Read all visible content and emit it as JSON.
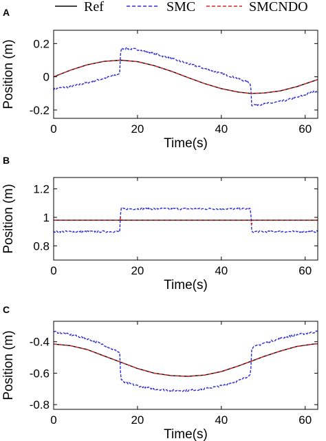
{
  "legend": [
    {
      "name": "Ref",
      "color": "#000000",
      "dash": "solid"
    },
    {
      "name": "SMC",
      "color": "#2a2ad6",
      "dash": "dashed"
    },
    {
      "name": "SMCNDO",
      "color": "#d62424",
      "dash": "dashed"
    }
  ],
  "chart_data": [
    {
      "type": "line",
      "panel_label": "A",
      "xlabel": "Time(s)",
      "ylabel": "Position (m)",
      "xlim": [
        0,
        63
      ],
      "ylim": [
        -0.25,
        0.28
      ],
      "xticks": [
        0,
        20,
        40,
        60
      ],
      "yticks": [
        -0.2,
        0,
        0.2
      ],
      "ytick_labels": [
        "-0.2",
        "0",
        "0.2"
      ],
      "grid": false,
      "legend_position": "top",
      "series": [
        {
          "name": "Ref",
          "x": [
            0,
            4,
            8,
            12,
            16,
            20,
            24,
            28,
            32,
            36,
            40,
            44,
            47,
            50,
            54,
            58,
            62,
            63
          ],
          "y": [
            0,
            0.04,
            0.072,
            0.093,
            0.1,
            0.091,
            0.067,
            0.034,
            -0.004,
            -0.041,
            -0.071,
            -0.092,
            -0.1,
            -0.098,
            -0.085,
            -0.059,
            -0.025,
            -0.016
          ]
        },
        {
          "name": "SMC",
          "x": [
            0,
            2,
            4,
            8,
            12,
            15.8,
            16,
            17,
            20,
            24,
            28,
            32,
            36,
            40,
            44,
            47,
            47.2,
            50,
            54,
            58,
            62,
            63
          ],
          "y": [
            -0.075,
            -0.065,
            -0.06,
            -0.035,
            -0.01,
            0.02,
            0.17,
            0.17,
            0.165,
            0.14,
            0.11,
            0.08,
            0.05,
            0.02,
            -0.01,
            -0.04,
            -0.17,
            -0.165,
            -0.15,
            -0.125,
            -0.09,
            -0.085
          ]
        },
        {
          "name": "SMCNDO",
          "x": [
            0,
            4,
            8,
            12,
            16,
            20,
            24,
            28,
            32,
            36,
            40,
            44,
            47,
            50,
            54,
            58,
            62,
            63
          ],
          "y": [
            0,
            0.04,
            0.072,
            0.093,
            0.1,
            0.091,
            0.067,
            0.034,
            -0.004,
            -0.041,
            -0.071,
            -0.092,
            -0.1,
            -0.098,
            -0.085,
            -0.059,
            -0.025,
            -0.016
          ]
        }
      ]
    },
    {
      "type": "line",
      "panel_label": "B",
      "xlabel": "Time(s)",
      "ylabel": "Position (m)",
      "xlim": [
        0,
        63
      ],
      "ylim": [
        0.7,
        1.28
      ],
      "xticks": [
        0,
        20,
        40,
        60
      ],
      "yticks": [
        0.8,
        1,
        1.2
      ],
      "ytick_labels": [
        "0.8",
        "1",
        "1.2"
      ],
      "grid": false,
      "series": [
        {
          "name": "Ref",
          "x": [
            0,
            63
          ],
          "y": [
            0.98,
            0.98
          ]
        },
        {
          "name": "SMC",
          "x": [
            0,
            10,
            15.8,
            16,
            20,
            30,
            40,
            47,
            47.2,
            55,
            63
          ],
          "y": [
            0.9,
            0.9,
            0.9,
            1.06,
            1.06,
            1.06,
            1.06,
            1.06,
            0.9,
            0.9,
            0.9
          ]
        },
        {
          "name": "SMCNDO",
          "x": [
            0,
            15.8,
            16,
            16.4,
            47,
            47.2,
            47.6,
            63
          ],
          "y": [
            0.98,
            0.98,
            1.0,
            0.98,
            0.98,
            0.95,
            0.98,
            0.98
          ]
        }
      ]
    },
    {
      "type": "line",
      "panel_label": "C",
      "xlabel": "Time(s)",
      "ylabel": "Position (m)",
      "xlim": [
        0,
        63
      ],
      "ylim": [
        -0.83,
        -0.27
      ],
      "xticks": [
        0,
        20,
        40,
        60
      ],
      "yticks": [
        -0.8,
        -0.6,
        -0.4
      ],
      "ytick_labels": [
        "-0.8",
        "-0.6",
        "-0.4"
      ],
      "grid": false,
      "series": [
        {
          "name": "Ref",
          "x": [
            0,
            4,
            8,
            12,
            16,
            20,
            24,
            28,
            32,
            36,
            40,
            44,
            47,
            50,
            54,
            58,
            62,
            63
          ],
          "y": [
            -0.415,
            -0.425,
            -0.45,
            -0.49,
            -0.53,
            -0.57,
            -0.6,
            -0.615,
            -0.62,
            -0.612,
            -0.59,
            -0.555,
            -0.525,
            -0.495,
            -0.46,
            -0.43,
            -0.415,
            -0.413
          ]
        },
        {
          "name": "SMC",
          "x": [
            0,
            2,
            4,
            8,
            12,
            15.8,
            16,
            17,
            20,
            24,
            28,
            32,
            36,
            40,
            44,
            47,
            47.2,
            50,
            54,
            58,
            62,
            63
          ],
          "y": [
            -0.335,
            -0.345,
            -0.355,
            -0.38,
            -0.42,
            -0.47,
            -0.64,
            -0.66,
            -0.68,
            -0.7,
            -0.71,
            -0.71,
            -0.7,
            -0.68,
            -0.65,
            -0.61,
            -0.44,
            -0.41,
            -0.38,
            -0.355,
            -0.34,
            -0.335
          ]
        },
        {
          "name": "SMCNDO",
          "x": [
            0,
            4,
            8,
            12,
            16,
            20,
            24,
            28,
            32,
            36,
            40,
            44,
            47,
            50,
            54,
            58,
            62,
            63
          ],
          "y": [
            -0.415,
            -0.425,
            -0.45,
            -0.49,
            -0.53,
            -0.57,
            -0.6,
            -0.615,
            -0.62,
            -0.612,
            -0.59,
            -0.555,
            -0.525,
            -0.495,
            -0.46,
            -0.43,
            -0.415,
            -0.413
          ]
        }
      ]
    }
  ]
}
